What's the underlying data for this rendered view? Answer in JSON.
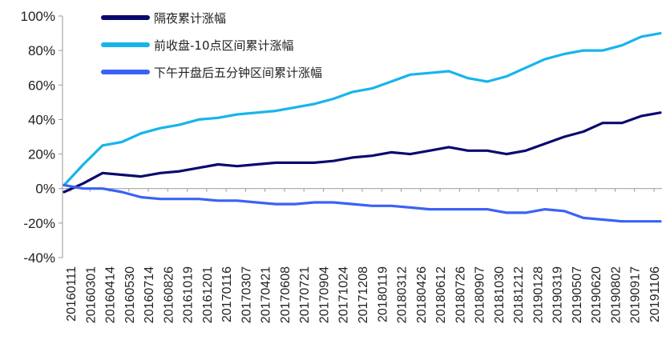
{
  "chart_data": {
    "type": "line",
    "ylim": [
      -40,
      100
    ],
    "y_ticks": [
      "100%",
      "80%",
      "60%",
      "40%",
      "20%",
      "0%",
      "-20%",
      "-40%"
    ],
    "y_tick_values": [
      100,
      80,
      60,
      40,
      20,
      0,
      -20,
      -40
    ],
    "x_tick_labels": [
      "20160111",
      "20160301",
      "20160414",
      "20160530",
      "20160714",
      "20160826",
      "20161019",
      "20161201",
      "20170116",
      "20170307",
      "20170421",
      "20170608",
      "20170721",
      "20170904",
      "20171024",
      "20171208",
      "20180119",
      "20180312",
      "20180426",
      "20180612",
      "20180726",
      "20180907",
      "20181030",
      "20181212",
      "20190128",
      "20190319",
      "20190507",
      "20190620",
      "20190802",
      "20190917",
      "20191106"
    ],
    "legend_position": "top-left",
    "grid": false,
    "series": [
      {
        "name": "隔夜累计涨幅",
        "color": "#0a0a6e",
        "values": [
          -2,
          3,
          9,
          8,
          7,
          9,
          10,
          12,
          14,
          13,
          14,
          15,
          15,
          15,
          16,
          18,
          19,
          21,
          20,
          22,
          24,
          22,
          22,
          20,
          22,
          26,
          30,
          33,
          38,
          38,
          42,
          44
        ]
      },
      {
        "name": "前收盘-10点区间累计涨幅",
        "color": "#18b4ec",
        "values": [
          2,
          14,
          25,
          27,
          32,
          35,
          37,
          40,
          41,
          43,
          44,
          45,
          47,
          49,
          52,
          56,
          58,
          62,
          66,
          67,
          68,
          64,
          62,
          65,
          70,
          75,
          78,
          80,
          80,
          83,
          88,
          90
        ]
      },
      {
        "name": "下午开盘后五分钟区间累计涨幅",
        "color": "#3a62f5",
        "values": [
          2,
          0,
          0,
          -2,
          -5,
          -6,
          -6,
          -6,
          -7,
          -7,
          -8,
          -9,
          -9,
          -8,
          -8,
          -9,
          -10,
          -10,
          -11,
          -12,
          -12,
          -12,
          -12,
          -14,
          -14,
          -12,
          -13,
          -17,
          -18,
          -19,
          -19,
          -19
        ]
      }
    ]
  }
}
